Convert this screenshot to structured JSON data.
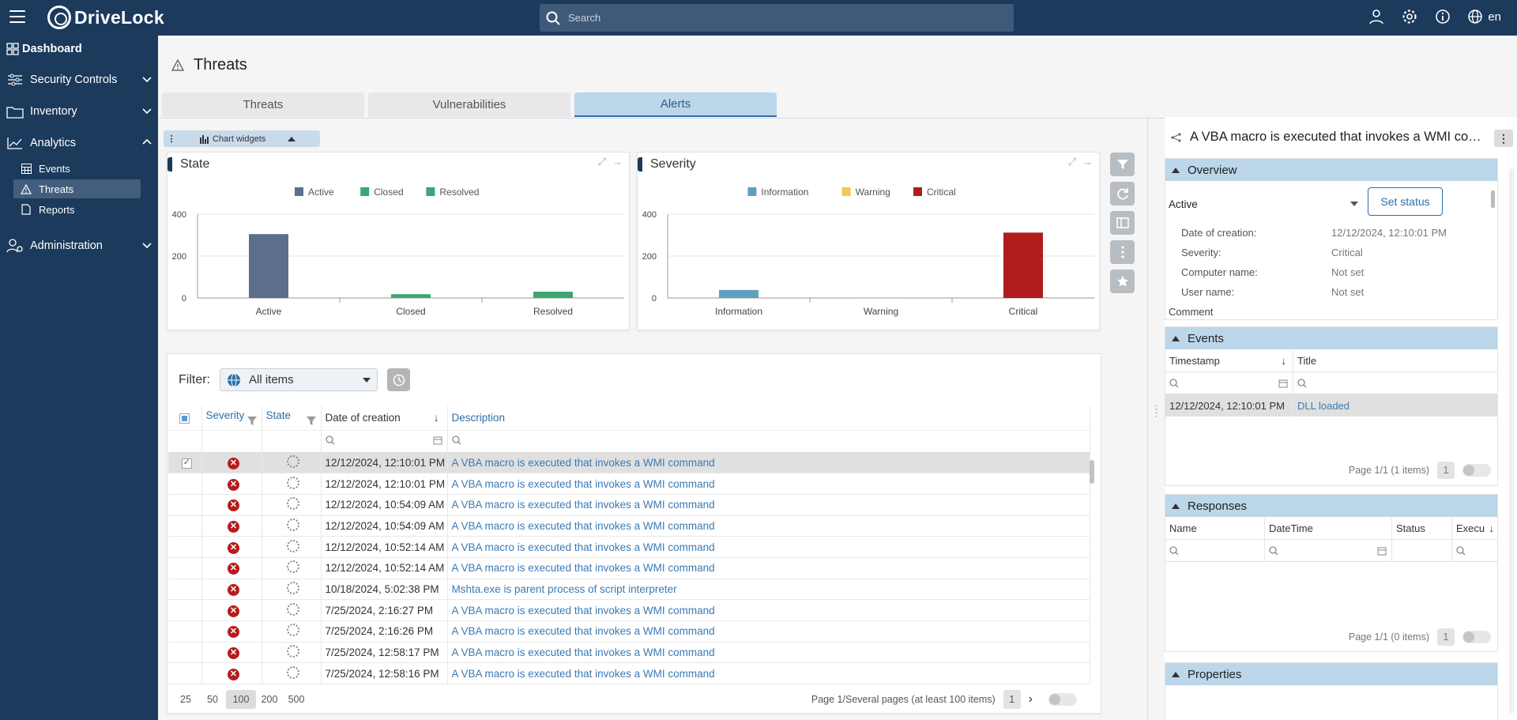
{
  "app": {
    "name": "DriveLock",
    "language": "en"
  },
  "search": {
    "placeholder": "Search"
  },
  "sidebar": {
    "dashboard": "Dashboard",
    "security_controls": "Security Controls",
    "inventory": "Inventory",
    "analytics": "Analytics",
    "events": "Events",
    "threats": "Threats",
    "reports": "Reports",
    "administration": "Administration"
  },
  "page": {
    "title": "Threats",
    "tabs": [
      "Threats",
      "Vulnerabilities",
      "Alerts"
    ],
    "active_tab": "Alerts",
    "chart_widgets_label": "Chart widgets"
  },
  "chart_data": [
    {
      "type": "bar",
      "title": "State",
      "categories": [
        "Active",
        "Closed",
        "Resolved"
      ],
      "series": [
        {
          "name": "Active",
          "values": [
            305,
            0,
            0
          ],
          "color": "#5c6f8a"
        },
        {
          "name": "Closed",
          "values": [
            0,
            18,
            0
          ],
          "color": "#3aa870"
        },
        {
          "name": "Resolved",
          "values": [
            0,
            0,
            30
          ],
          "color": "#3aa870"
        }
      ],
      "ylim": [
        0,
        400
      ],
      "yticks": [
        0,
        200,
        400
      ],
      "legend": "top"
    },
    {
      "type": "bar",
      "title": "Severity",
      "categories": [
        "Information",
        "Warning",
        "Critical"
      ],
      "series": [
        {
          "name": "Information",
          "values": [
            38,
            0,
            0
          ],
          "color": "#5fa0bd"
        },
        {
          "name": "Warning",
          "values": [
            0,
            3,
            0
          ],
          "color": "#f2c94c"
        },
        {
          "name": "Critical",
          "values": [
            0,
            0,
            312
          ],
          "color": "#b01c1c"
        }
      ],
      "ylim": [
        0,
        400
      ],
      "yticks": [
        0,
        200,
        400
      ],
      "legend": "top"
    }
  ],
  "grid": {
    "filter_label": "Filter:",
    "filter_value": "All items",
    "columns": [
      "Severity",
      "State",
      "Date of creation",
      "Description"
    ],
    "rows": [
      {
        "date": "12/12/2024, 12:10:01 PM",
        "description": "A VBA macro is executed that invokes a WMI command",
        "selected": true
      },
      {
        "date": "12/12/2024, 12:10:01 PM",
        "description": "A VBA macro is executed that invokes a WMI command"
      },
      {
        "date": "12/12/2024, 10:54:09 AM",
        "description": "A VBA macro is executed that invokes a WMI command"
      },
      {
        "date": "12/12/2024, 10:54:09 AM",
        "description": "A VBA macro is executed that invokes a WMI command"
      },
      {
        "date": "12/12/2024, 10:52:14 AM",
        "description": "A VBA macro is executed that invokes a WMI command"
      },
      {
        "date": "12/12/2024, 10:52:14 AM",
        "description": "A VBA macro is executed that invokes a WMI command"
      },
      {
        "date": "10/18/2024, 5:02:38 PM",
        "description": "Mshta.exe is parent process of script interpreter"
      },
      {
        "date": "7/25/2024, 2:16:27 PM",
        "description": "A VBA macro is executed that invokes a WMI command"
      },
      {
        "date": "7/25/2024, 2:16:26 PM",
        "description": "A VBA macro is executed that invokes a WMI command"
      },
      {
        "date": "7/25/2024, 12:58:17 PM",
        "description": "A VBA macro is executed that invokes a WMI command"
      },
      {
        "date": "7/25/2024, 12:58:16 PM",
        "description": "A VBA macro is executed that invokes a WMI command"
      }
    ],
    "page_sizes": [
      "25",
      "50",
      "100",
      "200",
      "500"
    ],
    "active_page_size": "100",
    "page_info": "Page 1/Several pages (at least 100 items)",
    "page_number": "1"
  },
  "detail": {
    "title": "A VBA macro is executed that invokes a WMI com...",
    "overview": {
      "heading": "Overview",
      "status": "Active",
      "set_status": "Set status",
      "fields": [
        {
          "label": "Date of creation:",
          "value": "12/12/2024, 12:10:01 PM"
        },
        {
          "label": "Severity:",
          "value": "Critical"
        },
        {
          "label": "Computer name:",
          "value": "Not set"
        },
        {
          "label": "User name:",
          "value": "Not set"
        }
      ],
      "comment_label": "Comment"
    },
    "events": {
      "heading": "Events",
      "columns": [
        "Timestamp",
        "Title"
      ],
      "row": {
        "timestamp": "12/12/2024, 12:10:01 PM",
        "title": "DLL loaded"
      },
      "page_info": "Page 1/1 (1 items)",
      "page_number": "1"
    },
    "responses": {
      "heading": "Responses",
      "columns": [
        "Name",
        "DateTime",
        "Status",
        "Execu"
      ],
      "page_info": "Page 1/1 (0 items)",
      "page_number": "1"
    },
    "properties": {
      "heading": "Properties"
    }
  }
}
